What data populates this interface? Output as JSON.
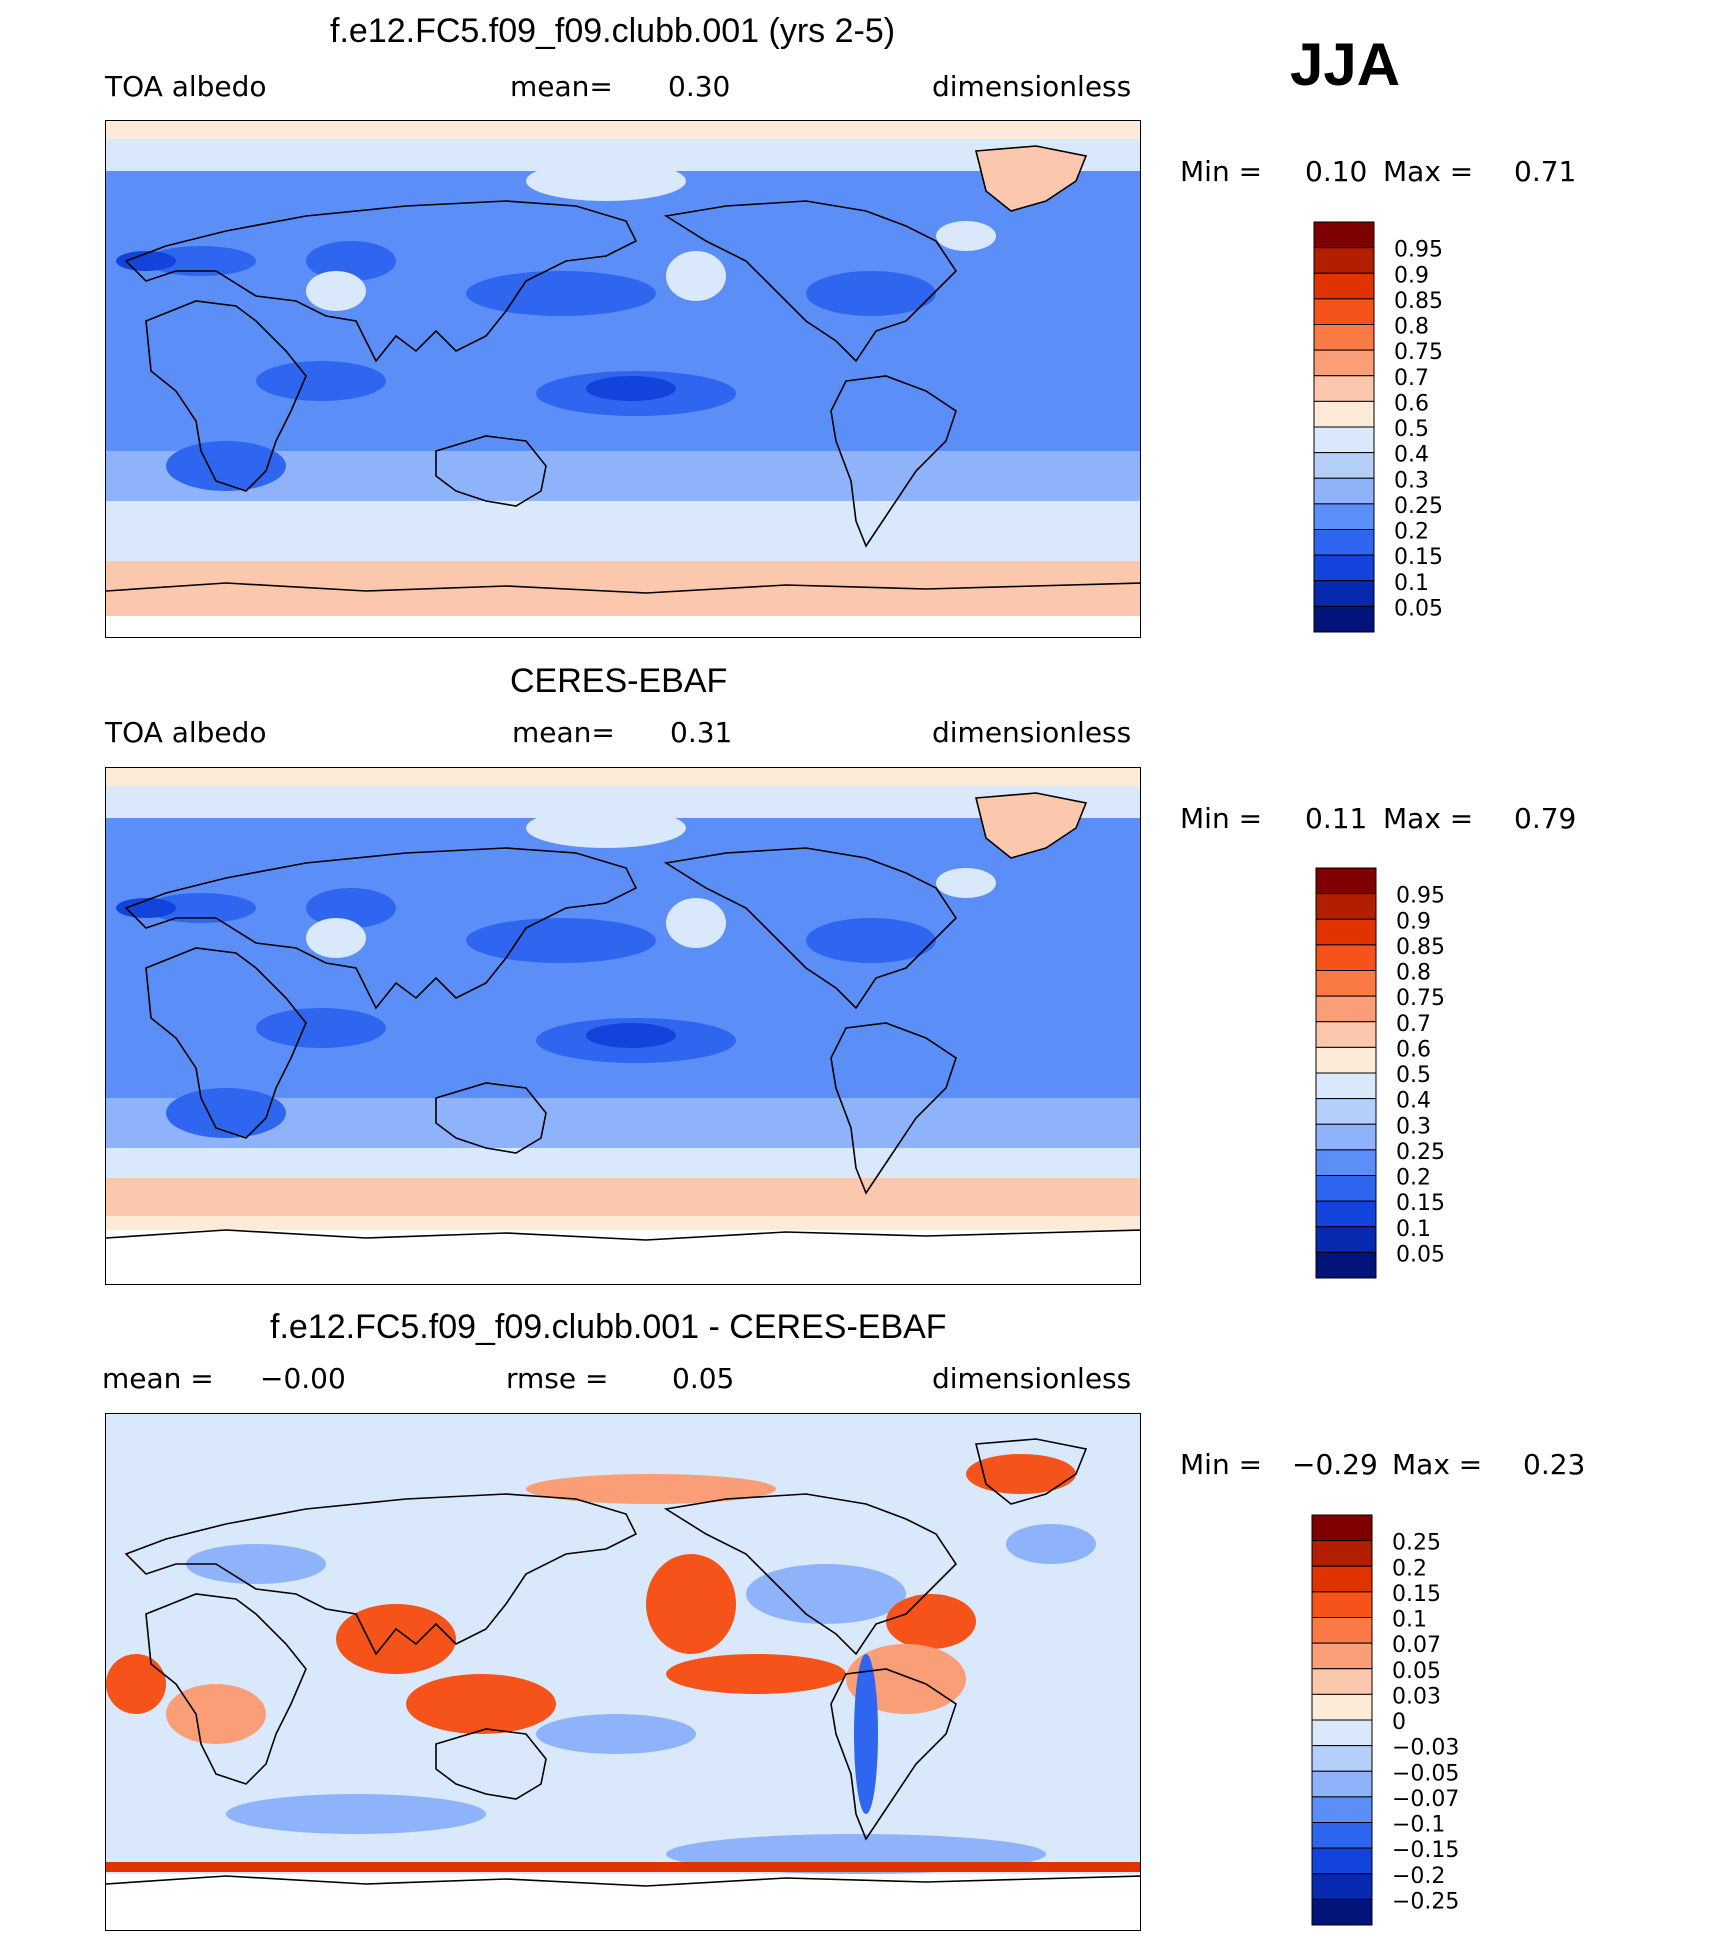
{
  "season": "JJA",
  "panels": [
    {
      "title": "f.e12.FC5.f09_f09.clubb.001 (yrs 2-5)",
      "left": "TOA albedo",
      "center_label": "mean=",
      "center_value": "0.30",
      "right_label": "",
      "right_value": "",
      "units": "dimensionless",
      "min_label": "Min =",
      "min_value": "0.10",
      "max_label": "Max =",
      "max_value": "0.71",
      "colorbar_id": "abs1"
    },
    {
      "title": "CERES-EBAF",
      "left": "TOA albedo",
      "center_label": "mean=",
      "center_value": "0.31",
      "right_label": "",
      "right_value": "",
      "units": "dimensionless",
      "min_label": "Min =",
      "min_value": "0.11",
      "max_label": "Max =",
      "max_value": "0.79",
      "colorbar_id": "abs2"
    },
    {
      "title": "f.e12.FC5.f09_f09.clubb.001 - CERES-EBAF",
      "left": "mean =",
      "left_value": "−0.00",
      "center_label": "rmse =",
      "center_value": "0.05",
      "units": "dimensionless",
      "min_label": "Min =",
      "min_value": "−0.29",
      "max_label": "Max =",
      "max_value": "0.23",
      "colorbar_id": "diff"
    }
  ],
  "colorbars": {
    "abs": {
      "labels": [
        "0.95",
        "0.9",
        "0.85",
        "0.8",
        "0.75",
        "0.7",
        "0.6",
        "0.5",
        "0.4",
        "0.3",
        "0.25",
        "0.2",
        "0.15",
        "0.1",
        "0.05"
      ],
      "colors": [
        "#7f0000",
        "#b21f00",
        "#e03300",
        "#f5531a",
        "#fa7a45",
        "#fa9e78",
        "#fcc8ad",
        "#fdebd8",
        "#d9e8fb",
        "#b5cffb",
        "#8eb3fb",
        "#5c8ef8",
        "#2e66f0",
        "#1244dc",
        "#0629b0",
        "#02137a"
      ]
    },
    "diff": {
      "labels": [
        "0.25",
        "0.2",
        "0.15",
        "0.1",
        "0.07",
        "0.05",
        "0.03",
        "0",
        "−0.03",
        "−0.05",
        "−0.07",
        "−0.1",
        "−0.15",
        "−0.2",
        "−0.25"
      ],
      "colors": [
        "#7f0000",
        "#b21f00",
        "#e03300",
        "#f5531a",
        "#fa7a45",
        "#fa9e78",
        "#fcc8ad",
        "#fdebd8",
        "#d9e8fb",
        "#b5cffb",
        "#8eb3fb",
        "#5c8ef8",
        "#2e66f0",
        "#1244dc",
        "#0629b0",
        "#02137a"
      ]
    }
  },
  "map_colors": {
    "polar_band": "#fdebd8",
    "antarctic_band": "#fcc8ad",
    "light_blue": "#d9e8fb",
    "mid_blue": "#8eb3fb",
    "blue": "#5c8ef8",
    "deep_blue": "#2e66f0",
    "darkest_blue": "#1244dc",
    "greenland": "#fcc8ad",
    "diff_red": "#f5531a",
    "diff_lightred": "#fa9e78",
    "diff_strip": "#e03300",
    "coast": "#000000"
  }
}
